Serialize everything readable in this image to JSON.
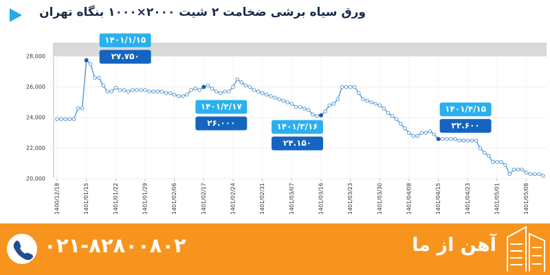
{
  "chart_data": {
    "type": "line",
    "title": "ورق سیاه برشی ضخامت ۲ شیت ۲۰۰۰×۱۰۰۰ بنگاه تهران",
    "categories": [
      "1400/12/18",
      null,
      null,
      null,
      null,
      null,
      null,
      "1401/01/15",
      null,
      null,
      null,
      null,
      null,
      null,
      "1401/01/22",
      null,
      null,
      null,
      null,
      null,
      null,
      "1401/01/29",
      null,
      null,
      null,
      null,
      null,
      null,
      "1401/02/06",
      null,
      null,
      null,
      null,
      null,
      null,
      "1401/02/17",
      null,
      null,
      null,
      null,
      null,
      null,
      "1401/02/24",
      null,
      null,
      null,
      null,
      null,
      null,
      "1401/02/31",
      null,
      null,
      null,
      null,
      null,
      null,
      "1401/03/07",
      null,
      null,
      null,
      null,
      null,
      null,
      "1401/03/16",
      null,
      null,
      null,
      null,
      null,
      null,
      "1401/03/23",
      null,
      null,
      null,
      null,
      null,
      null,
      "1401/03/30",
      null,
      null,
      null,
      null,
      null,
      null,
      "1401/04/08",
      null,
      null,
      null,
      null,
      null,
      null,
      "1401/04/15",
      null,
      null,
      null,
      null,
      null,
      null,
      "1401/04/23",
      null,
      null,
      null,
      null,
      null,
      null,
      "1401/05/01",
      null,
      null,
      null,
      null,
      null,
      null,
      "1401/05/08",
      null,
      null,
      null,
      null
    ],
    "series": [
      {
        "color": "#5b9bd5",
        "values": [
          23900,
          23900,
          23900,
          23900,
          23900,
          24600,
          24600,
          27750,
          27500,
          26600,
          26600,
          26100,
          25700,
          25700,
          25950,
          25800,
          25800,
          25700,
          25800,
          25800,
          25800,
          25800,
          25700,
          25700,
          25700,
          25700,
          25600,
          25600,
          25500,
          25400,
          25400,
          25500,
          25800,
          25900,
          25800,
          26000,
          26100,
          25900,
          25700,
          25600,
          25700,
          25700,
          26000,
          26500,
          26300,
          26100,
          26000,
          25800,
          25700,
          25600,
          25500,
          25400,
          25300,
          25200,
          25100,
          25000,
          24900,
          24700,
          24700,
          24600,
          24500,
          24200,
          24100,
          24150,
          24400,
          24800,
          24900,
          25200,
          26000,
          26000,
          26000,
          26000,
          25600,
          25200,
          25100,
          25000,
          24900,
          24800,
          24600,
          24300,
          24100,
          23900,
          23600,
          23300,
          23000,
          22800,
          22800,
          23000,
          23000,
          23100,
          22900,
          22600,
          22600,
          22600,
          22600,
          22600,
          22500,
          22500,
          22500,
          22500,
          22500,
          22000,
          21700,
          21500,
          21100,
          21100,
          21100,
          20900,
          20300,
          20600,
          20600,
          20600,
          20400,
          20300,
          20300,
          20300,
          20200
        ]
      }
    ],
    "ylim": [
      20000,
      28900
    ],
    "yticks": [
      {
        "value": 20000,
        "label": "20,000"
      },
      {
        "value": 22000,
        "label": "22,000"
      },
      {
        "value": 24000,
        "label": "24,000"
      },
      {
        "value": 26000,
        "label": "26,000"
      },
      {
        "value": 28000,
        "label": "28,000"
      }
    ],
    "grid": true,
    "annotations": [
      {
        "date": "۱۴۰۱/۱/۱۵",
        "value": 27750,
        "value_label": "۲۷.۷۵۰"
      },
      {
        "date": "۱۴۰۱/۲/۱۷",
        "value": 26000,
        "value_label": "۲۶.۰۰۰"
      },
      {
        "date": "۱۴۰۱/۳/۱۶",
        "value": 24150,
        "value_label": "۲۴.۱۵۰"
      },
      {
        "date": "۱۴۰۱/۴/۱۵",
        "value": 22600,
        "value_label": "۲۲.۶۰۰"
      }
    ]
  },
  "footer": {
    "phone": "۰۲۱-۸۲۸۰۰۸۰۲",
    "brand": "آهن از ما"
  }
}
